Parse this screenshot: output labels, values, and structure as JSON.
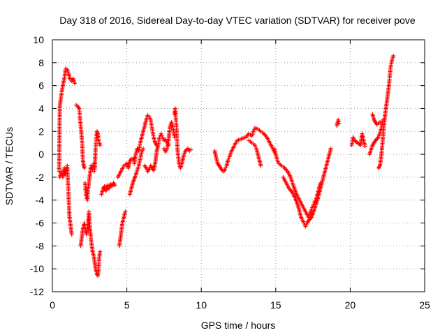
{
  "chart_data": {
    "type": "scatter",
    "title": "Day 318 of 2016, Sidereal Day-to-day VTEC variation (SDTVAR) for receiver pove",
    "xlabel": "GPS time / hours",
    "ylabel": "SDTVAR / TECUs",
    "xlim": [
      0,
      25
    ],
    "ylim": [
      -12,
      10
    ],
    "xticks": [
      0,
      5,
      10,
      15,
      20,
      25
    ],
    "yticks": [
      -12,
      -10,
      -8,
      -6,
      -4,
      -2,
      0,
      2,
      4,
      6,
      8,
      10
    ],
    "grid": true,
    "marker": "+",
    "color": "#ff0000",
    "segments": [
      [
        [
          0.45,
          -1.5
        ],
        [
          0.5,
          4.2
        ],
        [
          0.6,
          5.2
        ],
        [
          0.7,
          6.0
        ],
        [
          0.8,
          6.6
        ],
        [
          0.9,
          7.5
        ],
        [
          1.0,
          7.4
        ],
        [
          1.1,
          7.0
        ],
        [
          1.2,
          6.5
        ],
        [
          1.3,
          6.4
        ],
        [
          1.4,
          6.6
        ],
        [
          1.5,
          6.2
        ]
      ],
      [
        [
          0.5,
          -2.0
        ],
        [
          0.6,
          -1.5
        ],
        [
          0.7,
          -2.0
        ],
        [
          0.8,
          -1.2
        ],
        [
          0.9,
          -1.8
        ],
        [
          1.0,
          -1.0
        ],
        [
          1.05,
          -2.5
        ],
        [
          1.1,
          -4.0
        ],
        [
          1.15,
          -5.5
        ],
        [
          1.2,
          -6.0
        ],
        [
          1.25,
          -6.5
        ],
        [
          1.3,
          -7.0
        ]
      ],
      [
        [
          1.6,
          4.3
        ],
        [
          1.7,
          4.2
        ],
        [
          1.8,
          4.0
        ],
        [
          1.9,
          2.5
        ],
        [
          2.0,
          1.0
        ],
        [
          2.05,
          -0.5
        ],
        [
          2.1,
          -1.0
        ],
        [
          2.15,
          -1.2
        ]
      ],
      [
        [
          1.9,
          -8.0
        ],
        [
          2.0,
          -7.0
        ],
        [
          2.05,
          -6.5
        ],
        [
          2.15,
          -6.0
        ],
        [
          2.2,
          -6.5
        ],
        [
          2.3,
          -7.0
        ],
        [
          2.4,
          -6.0
        ],
        [
          2.45,
          -5.0
        ],
        [
          2.5,
          -6.2
        ],
        [
          2.55,
          -6.8
        ],
        [
          2.6,
          -7.5
        ],
        [
          2.7,
          -8.5
        ],
        [
          2.8,
          -9.0
        ],
        [
          2.9,
          -10.0
        ],
        [
          3.0,
          -10.5
        ],
        [
          3.05,
          -10.6
        ],
        [
          3.1,
          -10.0
        ],
        [
          3.15,
          -9.0
        ],
        [
          3.2,
          -8.5
        ]
      ],
      [
        [
          2.2,
          -2.5
        ],
        [
          2.25,
          -3.5
        ],
        [
          2.35,
          -4.0
        ],
        [
          2.4,
          -3.0
        ],
        [
          2.5,
          -2.0
        ],
        [
          2.6,
          -1.0
        ],
        [
          2.7,
          -1.3
        ],
        [
          2.8,
          -0.8
        ]
      ],
      [
        [
          2.8,
          -1.5
        ],
        [
          2.85,
          -1.2
        ],
        [
          2.9,
          0.5
        ],
        [
          2.95,
          1.5
        ],
        [
          3.0,
          2.0
        ],
        [
          3.05,
          1.8
        ],
        [
          3.1,
          1.2
        ],
        [
          3.2,
          0.8
        ]
      ],
      [
        [
          3.3,
          -3.5
        ],
        [
          3.4,
          -3.0
        ],
        [
          3.5,
          -2.8
        ],
        [
          3.6,
          -3.2
        ],
        [
          3.7,
          -2.7
        ],
        [
          3.8,
          -3.0
        ],
        [
          3.9,
          -2.6
        ],
        [
          4.0,
          -2.8
        ],
        [
          4.1,
          -2.5
        ],
        [
          4.2,
          -2.7
        ]
      ],
      [
        [
          4.5,
          -8.0
        ],
        [
          4.6,
          -7.0
        ],
        [
          4.7,
          -6.0
        ],
        [
          4.8,
          -5.5
        ],
        [
          4.9,
          -5.0
        ]
      ],
      [
        [
          4.4,
          -2.0
        ],
        [
          4.6,
          -1.5
        ],
        [
          4.8,
          -1.0
        ],
        [
          5.0,
          -0.8
        ],
        [
          5.1,
          -1.2
        ],
        [
          5.2,
          -0.6
        ],
        [
          5.3,
          -0.4
        ],
        [
          5.4,
          -0.5
        ],
        [
          5.5,
          -0.3
        ]
      ],
      [
        [
          5.2,
          -3.5
        ],
        [
          5.3,
          -3.0
        ],
        [
          5.4,
          -2.5
        ],
        [
          5.6,
          -1.8
        ],
        [
          5.8,
          -1.0
        ],
        [
          6.0,
          0.2
        ],
        [
          6.1,
          0.5
        ]
      ],
      [
        [
          5.5,
          -0.8
        ],
        [
          5.6,
          0.0
        ],
        [
          5.7,
          0.5
        ],
        [
          5.8,
          0.3
        ],
        [
          5.9,
          1.0
        ],
        [
          6.0,
          1.5
        ],
        [
          6.1,
          2.0
        ],
        [
          6.2,
          2.5
        ],
        [
          6.3,
          3.0
        ],
        [
          6.4,
          3.4
        ],
        [
          6.5,
          3.3
        ],
        [
          6.6,
          3.0
        ],
        [
          6.7,
          2.2
        ],
        [
          6.8,
          1.5
        ],
        [
          6.9,
          1.0
        ],
        [
          7.0,
          0.8
        ]
      ],
      [
        [
          6.2,
          -1.0
        ],
        [
          6.3,
          -1.2
        ],
        [
          6.4,
          -1.5
        ],
        [
          6.5,
          -1.3
        ],
        [
          6.6,
          -1.0
        ],
        [
          6.7,
          -1.2
        ],
        [
          6.8,
          -1.4
        ],
        [
          6.9,
          -0.8
        ],
        [
          7.0,
          0.2
        ],
        [
          7.1,
          0.8
        ],
        [
          7.2,
          1.5
        ],
        [
          7.3,
          1.8
        ],
        [
          7.4,
          1.5
        ],
        [
          7.5,
          1.2
        ],
        [
          7.6,
          1.3
        ],
        [
          7.7,
          1.0
        ],
        [
          7.8,
          0.8
        ]
      ],
      [
        [
          7.5,
          0.5
        ],
        [
          7.6,
          0.2
        ],
        [
          7.7,
          0.5
        ],
        [
          7.8,
          1.2
        ],
        [
          7.9,
          2.5
        ],
        [
          8.0,
          2.8
        ],
        [
          8.1,
          2.3
        ],
        [
          8.2,
          1.5
        ]
      ],
      [
        [
          8.2,
          3.5
        ],
        [
          8.25,
          4.0
        ],
        [
          8.3,
          3.0
        ],
        [
          8.35,
          2.0
        ],
        [
          8.4,
          0.5
        ],
        [
          8.5,
          -0.8
        ],
        [
          8.6,
          -1.2
        ],
        [
          8.7,
          -0.8
        ],
        [
          8.8,
          -0.2
        ],
        [
          8.9,
          0.2
        ],
        [
          9.0,
          0.4
        ],
        [
          9.1,
          0.5
        ],
        [
          9.2,
          0.3
        ],
        [
          9.3,
          0.4
        ]
      ],
      [
        [
          10.9,
          0.3
        ],
        [
          11.0,
          -0.3
        ],
        [
          11.1,
          -0.8
        ],
        [
          11.2,
          -1.0
        ],
        [
          11.3,
          -1.2
        ],
        [
          11.4,
          -1.4
        ],
        [
          11.5,
          -1.5
        ],
        [
          11.6,
          -1.3
        ],
        [
          11.7,
          -1.0
        ],
        [
          11.8,
          -0.5
        ],
        [
          11.9,
          -0.2
        ],
        [
          12.0,
          0.2
        ],
        [
          12.2,
          0.7
        ],
        [
          12.4,
          1.2
        ],
        [
          12.6,
          1.3
        ],
        [
          12.8,
          1.4
        ],
        [
          13.0,
          1.5
        ],
        [
          13.2,
          1.8
        ],
        [
          13.4,
          1.6
        ],
        [
          13.5,
          2.0
        ],
        [
          13.6,
          2.3
        ],
        [
          13.8,
          2.2
        ],
        [
          14.0,
          2.0
        ],
        [
          14.2,
          1.8
        ],
        [
          14.4,
          1.5
        ],
        [
          14.6,
          1.0
        ],
        [
          14.8,
          0.5
        ],
        [
          14.9,
          0.2
        ]
      ],
      [
        [
          13.2,
          1.2
        ],
        [
          13.4,
          1.0
        ],
        [
          13.6,
          0.8
        ],
        [
          13.7,
          0.5
        ],
        [
          13.8,
          0.0
        ],
        [
          13.9,
          -0.5
        ],
        [
          14.0,
          -1.0
        ]
      ],
      [
        [
          14.9,
          0.5
        ],
        [
          15.0,
          0.0
        ],
        [
          15.1,
          -0.5
        ],
        [
          15.2,
          -0.8
        ],
        [
          15.4,
          -1.0
        ],
        [
          15.6,
          -1.2
        ],
        [
          15.8,
          -1.5
        ],
        [
          16.0,
          -2.0
        ],
        [
          16.2,
          -2.8
        ],
        [
          16.4,
          -3.5
        ],
        [
          16.6,
          -4.0
        ],
        [
          16.8,
          -4.5
        ],
        [
          17.0,
          -5.0
        ],
        [
          17.2,
          -5.5
        ],
        [
          17.3,
          -5.2
        ],
        [
          17.4,
          -4.8
        ],
        [
          17.5,
          -4.5
        ],
        [
          17.6,
          -4.2
        ],
        [
          17.7,
          -4.0
        ],
        [
          17.8,
          -3.5
        ],
        [
          17.9,
          -3.0
        ],
        [
          18.0,
          -2.5
        ]
      ],
      [
        [
          15.5,
          -2.0
        ],
        [
          15.7,
          -2.5
        ],
        [
          15.9,
          -3.0
        ],
        [
          16.1,
          -3.3
        ],
        [
          16.3,
          -3.8
        ],
        [
          16.5,
          -4.5
        ],
        [
          16.7,
          -5.5
        ],
        [
          16.9,
          -6.0
        ],
        [
          17.0,
          -6.3
        ],
        [
          17.1,
          -6.0
        ],
        [
          17.2,
          -5.8
        ],
        [
          17.4,
          -5.5
        ],
        [
          17.6,
          -4.8
        ],
        [
          17.8,
          -4.0
        ],
        [
          18.0,
          -3.0
        ],
        [
          18.2,
          -2.0
        ],
        [
          18.3,
          -1.5
        ],
        [
          18.4,
          -1.0
        ],
        [
          18.5,
          -0.5
        ],
        [
          18.6,
          0.0
        ],
        [
          18.7,
          0.5
        ]
      ],
      [
        [
          19.1,
          2.5
        ],
        [
          19.2,
          3.0
        ],
        [
          19.25,
          2.7
        ]
      ],
      [
        [
          20.1,
          0.8
        ],
        [
          20.2,
          1.5
        ],
        [
          20.3,
          1.2
        ],
        [
          20.7,
          0.8
        ],
        [
          20.8,
          1.8
        ],
        [
          20.9,
          1.2
        ],
        [
          21.0,
          0.7
        ]
      ],
      [
        [
          21.5,
          3.5
        ],
        [
          21.6,
          3.0
        ],
        [
          21.7,
          2.8
        ],
        [
          21.8,
          2.6
        ],
        [
          21.9,
          2.7
        ],
        [
          22.0,
          2.8
        ]
      ],
      [
        [
          21.3,
          0.0
        ],
        [
          21.5,
          0.8
        ],
        [
          21.7,
          1.2
        ],
        [
          21.9,
          1.5
        ],
        [
          22.1,
          2.3
        ],
        [
          22.2,
          3.0
        ]
      ],
      [
        [
          21.9,
          -1.2
        ],
        [
          22.0,
          -1.0
        ],
        [
          22.1,
          0.0
        ],
        [
          22.2,
          1.5
        ],
        [
          22.3,
          3.0
        ],
        [
          22.4,
          4.0
        ],
        [
          22.5,
          5.0
        ],
        [
          22.6,
          6.0
        ],
        [
          22.7,
          7.5
        ],
        [
          22.8,
          8.2
        ],
        [
          22.9,
          8.6
        ]
      ]
    ]
  }
}
